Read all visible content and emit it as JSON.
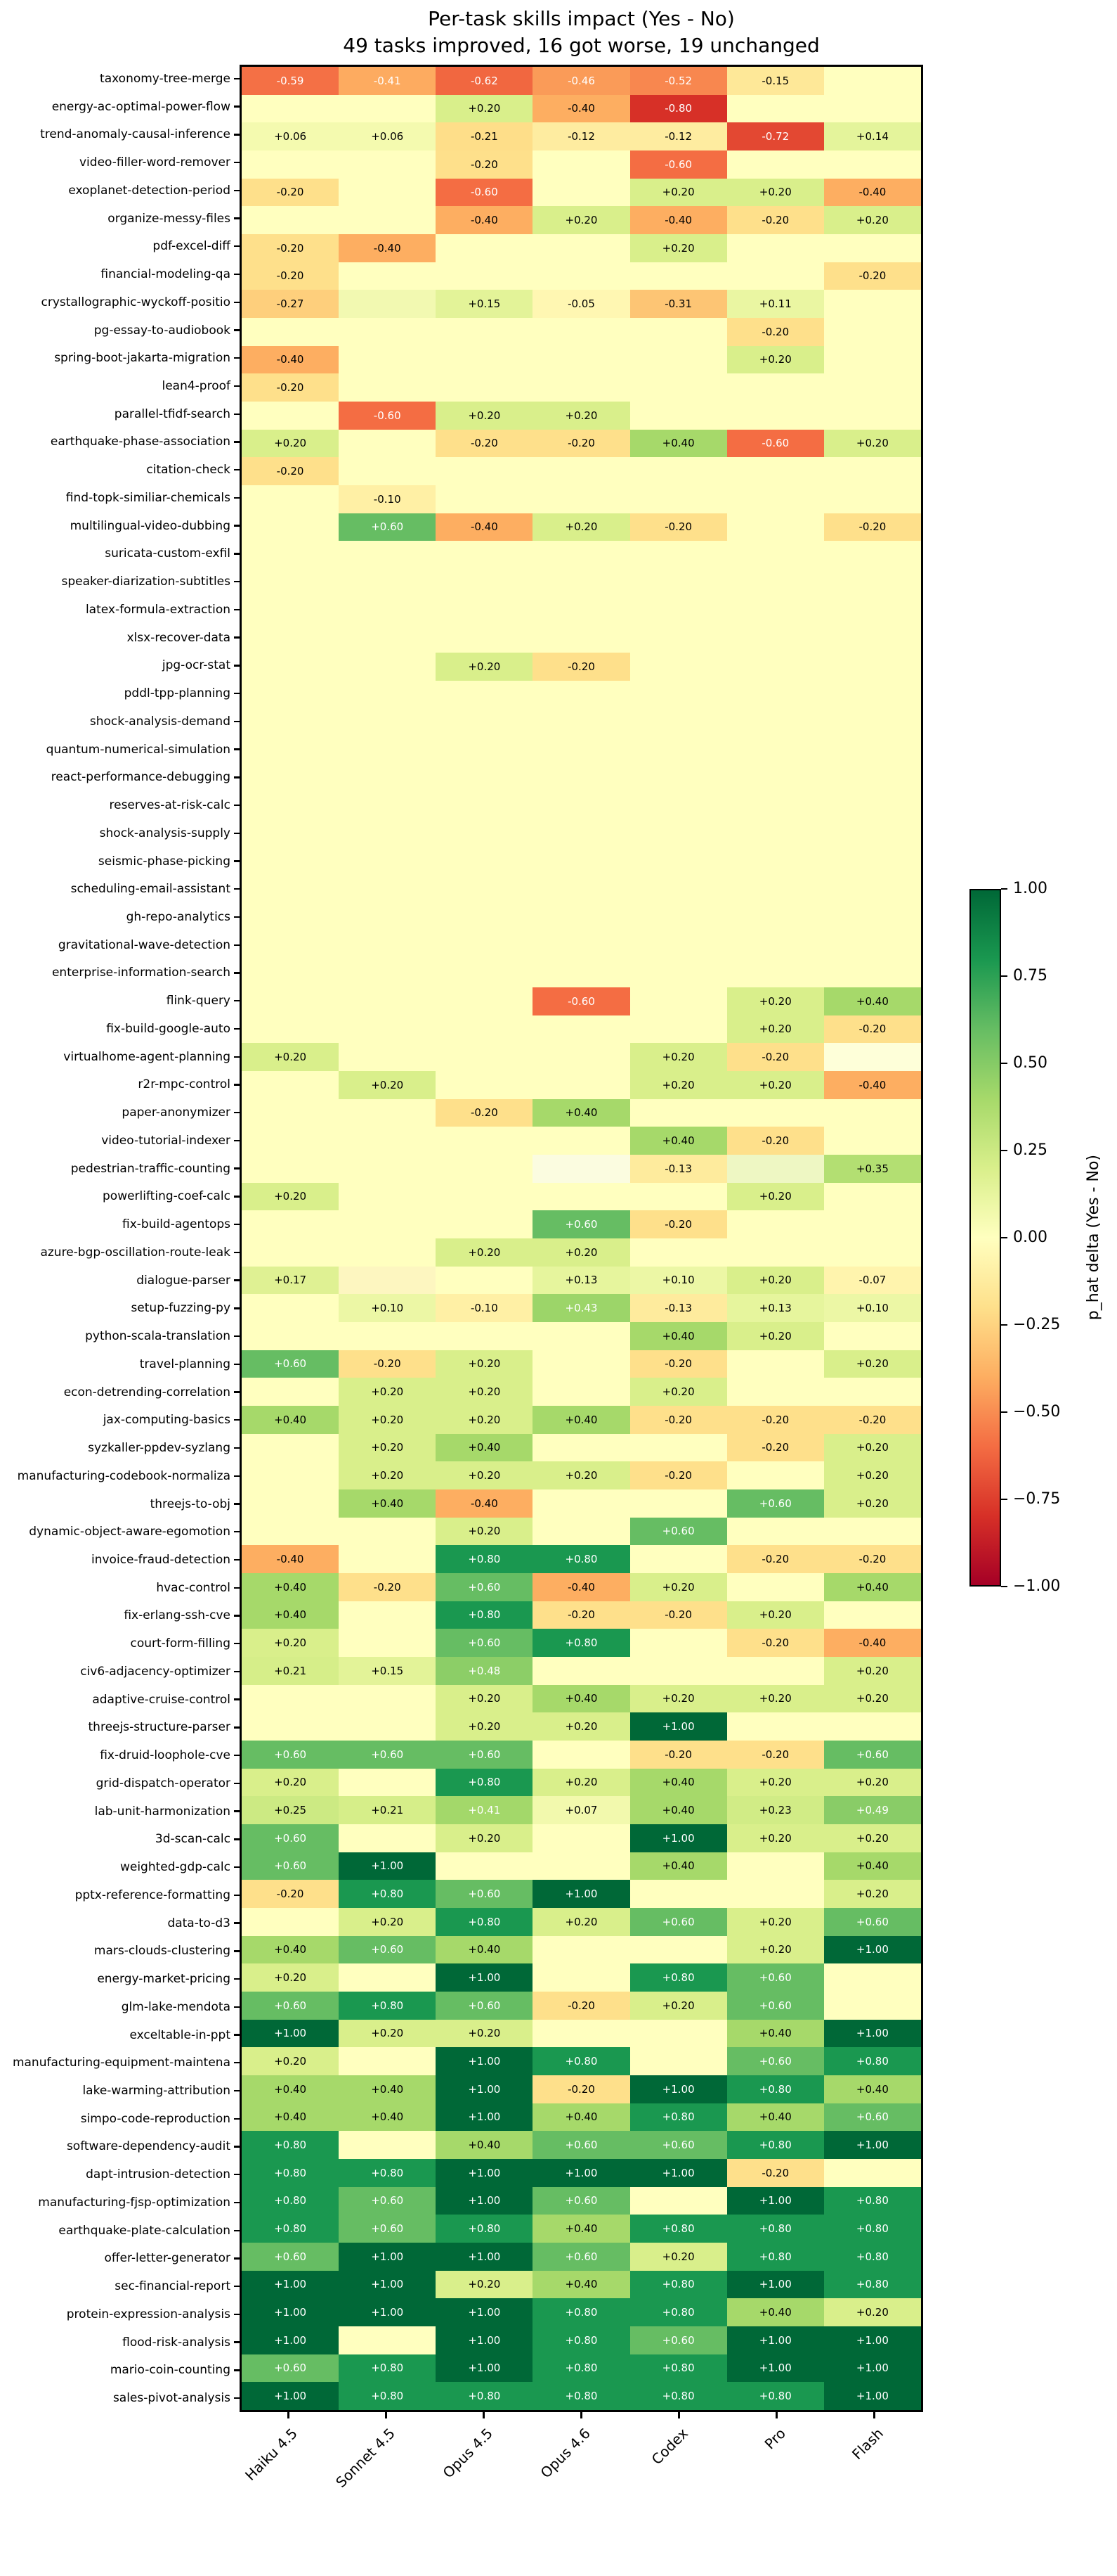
{
  "figure": {
    "background": "#ffffff",
    "text_color": "#000000"
  },
  "chart_data": {
    "type": "heatmap",
    "title": "Per-task skills impact (Yes - No)",
    "subtitle": "49 tasks improved, 16 got worse, 19 unchanged",
    "x": [
      "Haiku 4.5",
      "Sonnet 4.5",
      "Opus 4.5",
      "Opus 4.6",
      "Codex",
      "Pro",
      "Flash"
    ],
    "vmin": -1.0,
    "vmax": 1.0,
    "colormap": "RdYlGn",
    "colormap_stops": [
      "#a50026",
      "#d73027",
      "#f46d43",
      "#fdae61",
      "#fee08b",
      "#ffffbf",
      "#d9ef8b",
      "#a6d96a",
      "#66bd63",
      "#1a9850",
      "#006837"
    ],
    "colorbar_label": "p_hat delta (Yes - No)",
    "colorbar_ticks": [
      "1.00",
      "0.75",
      "0.50",
      "0.25",
      "0.00",
      "−0.25",
      "−0.50",
      "−0.75",
      "−1.00"
    ],
    "value_format": "+0.00 / -0.00, blank = 0.00",
    "rows": [
      {
        "task": "taxonomy-tree-merge",
        "values": [
          -0.59,
          -0.41,
          -0.62,
          -0.46,
          -0.52,
          -0.15,
          null
        ]
      },
      {
        "task": "energy-ac-optimal-power-flow",
        "values": [
          null,
          null,
          0.2,
          -0.4,
          -0.8,
          null,
          null
        ]
      },
      {
        "task": "trend-anomaly-causal-inference",
        "values": [
          0.06,
          0.06,
          -0.21,
          -0.12,
          -0.12,
          -0.72,
          0.14
        ]
      },
      {
        "task": "video-filler-word-remover",
        "values": [
          null,
          null,
          -0.2,
          null,
          -0.6,
          null,
          null
        ]
      },
      {
        "task": "exoplanet-detection-period",
        "values": [
          -0.2,
          null,
          -0.6,
          null,
          0.2,
          0.2,
          -0.4
        ]
      },
      {
        "task": "organize-messy-files",
        "values": [
          null,
          null,
          -0.4,
          0.2,
          -0.4,
          -0.2,
          0.2
        ]
      },
      {
        "task": "pdf-excel-diff",
        "values": [
          -0.2,
          -0.4,
          null,
          null,
          0.2,
          null,
          null
        ]
      },
      {
        "task": "financial-modeling-qa",
        "values": [
          -0.2,
          null,
          null,
          null,
          null,
          null,
          -0.2
        ]
      },
      {
        "task": "crystallographic-wyckoff-positio",
        "values": [
          -0.27,
          {
            "c": "#f2f9b1"
          },
          0.15,
          -0.05,
          -0.31,
          0.11,
          null
        ]
      },
      {
        "task": "pg-essay-to-audiobook",
        "values": [
          null,
          null,
          null,
          null,
          null,
          -0.2,
          null
        ]
      },
      {
        "task": "spring-boot-jakarta-migration",
        "values": [
          -0.4,
          null,
          null,
          null,
          null,
          0.2,
          null
        ]
      },
      {
        "task": "lean4-proof",
        "values": [
          -0.2,
          null,
          null,
          null,
          null,
          null,
          null
        ]
      },
      {
        "task": "parallel-tfidf-search",
        "values": [
          null,
          -0.6,
          0.2,
          0.2,
          null,
          null,
          null
        ]
      },
      {
        "task": "earthquake-phase-association",
        "values": [
          0.2,
          null,
          -0.2,
          -0.2,
          0.4,
          -0.6,
          0.2
        ]
      },
      {
        "task": "citation-check",
        "values": [
          -0.2,
          null,
          null,
          null,
          null,
          null,
          null
        ]
      },
      {
        "task": "find-topk-similiar-chemicals",
        "values": [
          null,
          -0.1,
          null,
          null,
          null,
          null,
          null
        ]
      },
      {
        "task": "multilingual-video-dubbing",
        "values": [
          null,
          0.6,
          -0.4,
          0.2,
          -0.2,
          null,
          -0.2
        ]
      },
      {
        "task": "suricata-custom-exfil",
        "values": [
          null,
          null,
          null,
          null,
          null,
          null,
          null
        ]
      },
      {
        "task": "speaker-diarization-subtitles",
        "values": [
          null,
          null,
          null,
          null,
          null,
          null,
          null
        ]
      },
      {
        "task": "latex-formula-extraction",
        "values": [
          null,
          null,
          null,
          null,
          null,
          null,
          null
        ]
      },
      {
        "task": "xlsx-recover-data",
        "values": [
          null,
          null,
          null,
          null,
          null,
          null,
          null
        ]
      },
      {
        "task": "jpg-ocr-stat",
        "values": [
          null,
          null,
          0.2,
          -0.2,
          null,
          null,
          null
        ]
      },
      {
        "task": "pddl-tpp-planning",
        "values": [
          null,
          null,
          null,
          null,
          null,
          null,
          null
        ]
      },
      {
        "task": "shock-analysis-demand",
        "values": [
          null,
          null,
          null,
          null,
          null,
          null,
          null
        ]
      },
      {
        "task": "quantum-numerical-simulation",
        "values": [
          null,
          null,
          null,
          null,
          null,
          null,
          null
        ]
      },
      {
        "task": "react-performance-debugging",
        "values": [
          null,
          null,
          null,
          null,
          null,
          null,
          null
        ]
      },
      {
        "task": "reserves-at-risk-calc",
        "values": [
          null,
          null,
          null,
          null,
          null,
          null,
          null
        ]
      },
      {
        "task": "shock-analysis-supply",
        "values": [
          null,
          null,
          null,
          null,
          null,
          null,
          null
        ]
      },
      {
        "task": "seismic-phase-picking",
        "values": [
          null,
          null,
          null,
          null,
          null,
          null,
          null
        ]
      },
      {
        "task": "scheduling-email-assistant",
        "values": [
          null,
          null,
          null,
          null,
          null,
          null,
          null
        ]
      },
      {
        "task": "gh-repo-analytics",
        "values": [
          null,
          null,
          null,
          null,
          null,
          null,
          null
        ]
      },
      {
        "task": "gravitational-wave-detection",
        "values": [
          null,
          null,
          null,
          null,
          null,
          null,
          null
        ]
      },
      {
        "task": "enterprise-information-search",
        "values": [
          null,
          null,
          null,
          null,
          null,
          null,
          null
        ]
      },
      {
        "task": "flink-query",
        "values": [
          null,
          null,
          null,
          -0.6,
          null,
          0.2,
          0.4
        ]
      },
      {
        "task": "fix-build-google-auto",
        "values": [
          null,
          null,
          null,
          null,
          null,
          0.2,
          -0.2
        ]
      },
      {
        "task": "virtualhome-agent-planning",
        "values": [
          0.2,
          null,
          null,
          null,
          0.2,
          -0.2,
          {
            "c": "#feffd9"
          }
        ]
      },
      {
        "task": "r2r-mpc-control",
        "values": [
          null,
          0.2,
          null,
          null,
          0.2,
          0.2,
          -0.4
        ]
      },
      {
        "task": "paper-anonymizer",
        "values": [
          null,
          null,
          -0.2,
          0.4,
          null,
          null,
          null
        ]
      },
      {
        "task": "video-tutorial-indexer",
        "values": [
          null,
          null,
          null,
          null,
          0.4,
          -0.2,
          null
        ]
      },
      {
        "task": "pedestrian-traffic-counting",
        "values": [
          null,
          null,
          null,
          {
            "c": "#fbfce0"
          },
          -0.13,
          {
            "c": "#eef7c3"
          },
          0.35
        ]
      },
      {
        "task": "powerlifting-coef-calc",
        "values": [
          0.2,
          null,
          null,
          null,
          null,
          0.2,
          null
        ]
      },
      {
        "task": "fix-build-agentops",
        "values": [
          null,
          null,
          null,
          0.6,
          -0.2,
          null,
          null
        ]
      },
      {
        "task": "azure-bgp-oscillation-route-leak",
        "values": [
          null,
          null,
          0.2,
          0.2,
          null,
          null,
          null
        ]
      },
      {
        "task": "dialogue-parser",
        "values": [
          0.17,
          {
            "c": "#fdf6c0"
          },
          null,
          0.13,
          0.1,
          0.2,
          -0.07
        ]
      },
      {
        "task": "setup-fuzzing-py",
        "values": [
          null,
          0.1,
          -0.1,
          0.43,
          -0.13,
          0.13,
          0.1
        ]
      },
      {
        "task": "python-scala-translation",
        "values": [
          null,
          null,
          null,
          null,
          0.4,
          0.2,
          null
        ]
      },
      {
        "task": "travel-planning",
        "values": [
          0.6,
          -0.2,
          0.2,
          null,
          -0.2,
          null,
          0.2
        ]
      },
      {
        "task": "econ-detrending-correlation",
        "values": [
          null,
          0.2,
          0.2,
          null,
          0.2,
          null,
          null
        ]
      },
      {
        "task": "jax-computing-basics",
        "values": [
          0.4,
          0.2,
          0.2,
          0.4,
          -0.2,
          -0.2,
          -0.2
        ]
      },
      {
        "task": "syzkaller-ppdev-syzlang",
        "values": [
          null,
          0.2,
          0.4,
          null,
          null,
          -0.2,
          0.2
        ]
      },
      {
        "task": "manufacturing-codebook-normaliza",
        "values": [
          null,
          0.2,
          0.2,
          0.2,
          -0.2,
          null,
          0.2
        ]
      },
      {
        "task": "threejs-to-obj",
        "values": [
          null,
          0.4,
          -0.4,
          null,
          null,
          0.6,
          0.2
        ]
      },
      {
        "task": "dynamic-object-aware-egomotion",
        "values": [
          null,
          null,
          0.2,
          null,
          0.6,
          null,
          null
        ]
      },
      {
        "task": "invoice-fraud-detection",
        "values": [
          -0.4,
          null,
          0.8,
          0.8,
          null,
          -0.2,
          -0.2
        ]
      },
      {
        "task": "hvac-control",
        "values": [
          0.4,
          -0.2,
          0.6,
          -0.4,
          0.2,
          null,
          0.4
        ]
      },
      {
        "task": "fix-erlang-ssh-cve",
        "values": [
          0.4,
          null,
          0.8,
          -0.2,
          -0.2,
          0.2,
          null
        ]
      },
      {
        "task": "court-form-filling",
        "values": [
          0.2,
          null,
          0.6,
          0.8,
          null,
          -0.2,
          -0.4
        ]
      },
      {
        "task": "civ6-adjacency-optimizer",
        "values": [
          0.21,
          0.15,
          0.48,
          null,
          null,
          null,
          0.2
        ]
      },
      {
        "task": "adaptive-cruise-control",
        "values": [
          null,
          null,
          0.2,
          0.4,
          0.2,
          0.2,
          0.2
        ]
      },
      {
        "task": "threejs-structure-parser",
        "values": [
          null,
          null,
          0.2,
          0.2,
          1.0,
          null,
          null
        ]
      },
      {
        "task": "fix-druid-loophole-cve",
        "values": [
          0.6,
          0.6,
          0.6,
          null,
          -0.2,
          -0.2,
          0.6
        ]
      },
      {
        "task": "grid-dispatch-operator",
        "values": [
          0.2,
          null,
          0.8,
          0.2,
          0.4,
          0.2,
          0.2
        ]
      },
      {
        "task": "lab-unit-harmonization",
        "values": [
          0.25,
          0.21,
          0.41,
          0.07,
          0.4,
          0.23,
          0.49
        ]
      },
      {
        "task": "3d-scan-calc",
        "values": [
          0.6,
          null,
          0.2,
          null,
          1.0,
          0.2,
          0.2
        ]
      },
      {
        "task": "weighted-gdp-calc",
        "values": [
          0.6,
          1.0,
          null,
          null,
          0.4,
          null,
          0.4
        ]
      },
      {
        "task": "pptx-reference-formatting",
        "values": [
          -0.2,
          0.8,
          0.6,
          1.0,
          null,
          null,
          0.2
        ]
      },
      {
        "task": "data-to-d3",
        "values": [
          null,
          0.2,
          0.8,
          0.2,
          0.6,
          0.2,
          0.6
        ]
      },
      {
        "task": "mars-clouds-clustering",
        "values": [
          0.4,
          0.6,
          0.4,
          null,
          null,
          0.2,
          1.0
        ]
      },
      {
        "task": "energy-market-pricing",
        "values": [
          0.2,
          null,
          1.0,
          null,
          0.8,
          0.6,
          null
        ]
      },
      {
        "task": "glm-lake-mendota",
        "values": [
          0.6,
          0.8,
          0.6,
          -0.2,
          0.2,
          0.6,
          null
        ]
      },
      {
        "task": "exceltable-in-ppt",
        "values": [
          1.0,
          0.2,
          0.2,
          null,
          null,
          0.4,
          1.0
        ]
      },
      {
        "task": "manufacturing-equipment-maintena",
        "values": [
          0.2,
          null,
          1.0,
          0.8,
          null,
          0.6,
          0.8
        ]
      },
      {
        "task": "lake-warming-attribution",
        "values": [
          0.4,
          0.4,
          1.0,
          -0.2,
          1.0,
          0.8,
          0.4
        ]
      },
      {
        "task": "simpo-code-reproduction",
        "values": [
          0.4,
          0.4,
          1.0,
          0.4,
          0.8,
          0.4,
          0.6
        ]
      },
      {
        "task": "software-dependency-audit",
        "values": [
          0.8,
          null,
          0.4,
          0.6,
          0.6,
          0.8,
          1.0
        ]
      },
      {
        "task": "dapt-intrusion-detection",
        "values": [
          0.8,
          0.8,
          1.0,
          1.0,
          1.0,
          -0.2,
          null
        ]
      },
      {
        "task": "manufacturing-fjsp-optimization",
        "values": [
          0.8,
          0.6,
          1.0,
          0.6,
          null,
          1.0,
          0.8
        ]
      },
      {
        "task": "earthquake-plate-calculation",
        "values": [
          0.8,
          0.6,
          0.8,
          0.4,
          0.8,
          0.8,
          0.8
        ]
      },
      {
        "task": "offer-letter-generator",
        "values": [
          0.6,
          1.0,
          1.0,
          0.6,
          0.2,
          0.8,
          0.8
        ]
      },
      {
        "task": "sec-financial-report",
        "values": [
          1.0,
          1.0,
          0.2,
          0.4,
          0.8,
          1.0,
          0.8
        ]
      },
      {
        "task": "protein-expression-analysis",
        "values": [
          1.0,
          1.0,
          1.0,
          0.8,
          0.8,
          0.4,
          0.2
        ]
      },
      {
        "task": "flood-risk-analysis",
        "values": [
          1.0,
          null,
          1.0,
          0.8,
          0.6,
          1.0,
          1.0
        ]
      },
      {
        "task": "mario-coin-counting",
        "values": [
          0.6,
          0.8,
          1.0,
          0.8,
          0.8,
          1.0,
          1.0
        ]
      },
      {
        "task": "sales-pivot-analysis",
        "values": [
          1.0,
          0.8,
          0.8,
          0.8,
          0.8,
          0.8,
          1.0
        ]
      }
    ]
  }
}
